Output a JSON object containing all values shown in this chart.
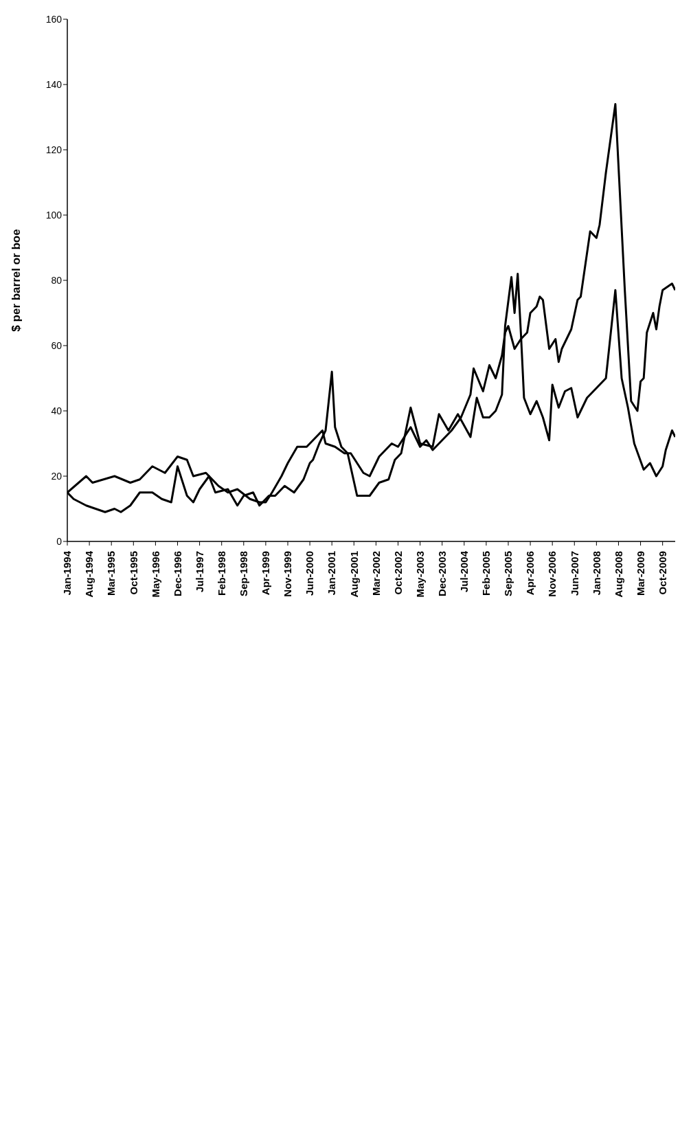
{
  "chart_data": {
    "type": "line",
    "ylabel": "$ per barrel or boe",
    "ylim": [
      0,
      160
    ],
    "yticks": [
      0,
      20,
      40,
      60,
      80,
      100,
      120,
      140,
      160
    ],
    "xlim": [
      "1994-01",
      "2010-02"
    ],
    "xticks": [
      {
        "value": "1994-01",
        "label": "Jan-1994"
      },
      {
        "value": "1994-08",
        "label": "Aug-1994"
      },
      {
        "value": "1995-03",
        "label": "Mar-1995"
      },
      {
        "value": "1995-10",
        "label": "Oct-1995"
      },
      {
        "value": "1996-05",
        "label": "May-1996"
      },
      {
        "value": "1996-12",
        "label": "Dec-1996"
      },
      {
        "value": "1997-07",
        "label": "Jul-1997"
      },
      {
        "value": "1998-02",
        "label": "Feb-1998"
      },
      {
        "value": "1998-09",
        "label": "Sep-1998"
      },
      {
        "value": "1999-04",
        "label": "Apr-1999"
      },
      {
        "value": "1999-11",
        "label": "Nov-1999"
      },
      {
        "value": "2000-06",
        "label": "Jun-2000"
      },
      {
        "value": "2001-01",
        "label": "Jan-2001"
      },
      {
        "value": "2001-08",
        "label": "Aug-2001"
      },
      {
        "value": "2002-03",
        "label": "Mar-2002"
      },
      {
        "value": "2002-10",
        "label": "Oct-2002"
      },
      {
        "value": "2003-05",
        "label": "May-2003"
      },
      {
        "value": "2003-12",
        "label": "Dec-2003"
      },
      {
        "value": "2004-07",
        "label": "Jul-2004"
      },
      {
        "value": "2005-02",
        "label": "Feb-2005"
      },
      {
        "value": "2005-09",
        "label": "Sep-2005"
      },
      {
        "value": "2006-04",
        "label": "Apr-2006"
      },
      {
        "value": "2006-11",
        "label": "Nov-2006"
      },
      {
        "value": "2007-06",
        "label": "Jun-2007"
      },
      {
        "value": "2008-01",
        "label": "Jan-2008"
      },
      {
        "value": "2008-08",
        "label": "Aug-2008"
      },
      {
        "value": "2009-03",
        "label": "Mar-2009"
      },
      {
        "value": "2009-10",
        "label": "Oct-2009"
      }
    ],
    "grid": false,
    "legend": false,
    "marker": "none",
    "line_style": "solid",
    "series": [
      {
        "color": "#000000",
        "x": [
          "1994-01",
          "1994-07",
          "1994-09",
          "1995-04",
          "1995-09",
          "1995-12",
          "1996-04",
          "1996-08",
          "1996-12",
          "1997-03",
          "1997-05",
          "1997-09",
          "1998-01",
          "1998-04",
          "1998-07",
          "1998-11",
          "1999-02",
          "1999-04",
          "1999-06",
          "1999-09",
          "1999-11",
          "2000-02",
          "2000-05",
          "2000-08",
          "2000-10",
          "2000-11",
          "2001-02",
          "2001-05",
          "2001-07",
          "2001-11",
          "2002-01",
          "2002-04",
          "2002-08",
          "2002-10",
          "2003-02",
          "2003-05",
          "2003-07",
          "2003-09",
          "2003-12",
          "2004-03",
          "2004-06",
          "2004-09",
          "2004-10",
          "2005-01",
          "2005-03",
          "2005-05",
          "2005-07",
          "2005-08",
          "2005-09",
          "2005-11",
          "2006-01",
          "2006-03",
          "2006-04",
          "2006-06",
          "2006-07",
          "2006-08",
          "2006-10",
          "2006-12",
          "2007-01",
          "2007-02",
          "2007-05",
          "2007-07",
          "2007-08",
          "2007-11",
          "2008-01",
          "2008-02",
          "2008-04",
          "2008-07",
          "2008-10",
          "2008-12",
          "2009-02",
          "2009-03",
          "2009-04",
          "2009-05",
          "2009-07",
          "2009-08",
          "2009-09",
          "2009-10",
          "2010-01",
          "2010-02"
        ],
        "values": [
          15,
          20,
          18,
          20,
          18,
          19,
          23,
          21,
          26,
          25,
          20,
          21,
          17,
          15,
          16,
          13,
          12,
          12,
          15,
          20,
          24,
          29,
          29,
          32,
          34,
          30,
          29,
          27,
          27,
          21,
          20,
          26,
          30,
          29,
          35,
          29,
          31,
          28,
          31,
          34,
          38,
          45,
          53,
          46,
          54,
          50,
          57,
          64,
          66,
          59,
          62,
          64,
          70,
          72,
          75,
          74,
          59,
          62,
          55,
          59,
          65,
          74,
          75,
          95,
          93,
          97,
          113,
          134,
          77,
          43,
          40,
          49,
          50,
          64,
          70,
          65,
          72,
          77,
          79,
          77
        ]
      },
      {
        "color": "#000000",
        "x": [
          "1994-01",
          "1994-03",
          "1994-07",
          "1994-10",
          "1995-01",
          "1995-04",
          "1995-06",
          "1995-09",
          "1995-12",
          "1996-04",
          "1996-07",
          "1996-10",
          "1996-12",
          "1997-03",
          "1997-05",
          "1997-07",
          "1997-10",
          "1997-12",
          "1998-04",
          "1998-07",
          "1998-09",
          "1998-12",
          "1999-02",
          "1999-05",
          "1999-07",
          "1999-10",
          "2000-01",
          "2000-04",
          "2000-06",
          "2000-07",
          "2000-09",
          "2000-11",
          "2001-01",
          "2001-02",
          "2001-04",
          "2001-06",
          "2001-09",
          "2002-01",
          "2002-04",
          "2002-07",
          "2002-09",
          "2002-11",
          "2003-02",
          "2003-05",
          "2003-09",
          "2003-11",
          "2004-02",
          "2004-05",
          "2004-09",
          "2004-11",
          "2005-01",
          "2005-03",
          "2005-05",
          "2005-07",
          "2005-08",
          "2005-10",
          "2005-11",
          "2005-12",
          "2006-01",
          "2006-02",
          "2006-04",
          "2006-06",
          "2006-08",
          "2006-10",
          "2006-11",
          "2007-01",
          "2007-03",
          "2007-05",
          "2007-07",
          "2007-10",
          "2007-12",
          "2008-04",
          "2008-07",
          "2008-09",
          "2008-11",
          "2009-01",
          "2009-04",
          "2009-06",
          "2009-08",
          "2009-10",
          "2009-11",
          "2010-01",
          "2010-02"
        ],
        "values": [
          15,
          13,
          11,
          10,
          9,
          10,
          9,
          11,
          15,
          15,
          13,
          12,
          23,
          14,
          12,
          16,
          20,
          15,
          16,
          11,
          14,
          15,
          11,
          14,
          14,
          17,
          15,
          19,
          24,
          25,
          30,
          34,
          52,
          35,
          29,
          27,
          14,
          14,
          18,
          19,
          25,
          27,
          41,
          30,
          29,
          39,
          34,
          39,
          32,
          44,
          38,
          38,
          40,
          45,
          66,
          81,
          70,
          82,
          64,
          44,
          39,
          43,
          38,
          31,
          48,
          41,
          46,
          47,
          38,
          44,
          46,
          50,
          77,
          50,
          41,
          30,
          22,
          24,
          20,
          23,
          28,
          34,
          32
        ]
      }
    ]
  }
}
